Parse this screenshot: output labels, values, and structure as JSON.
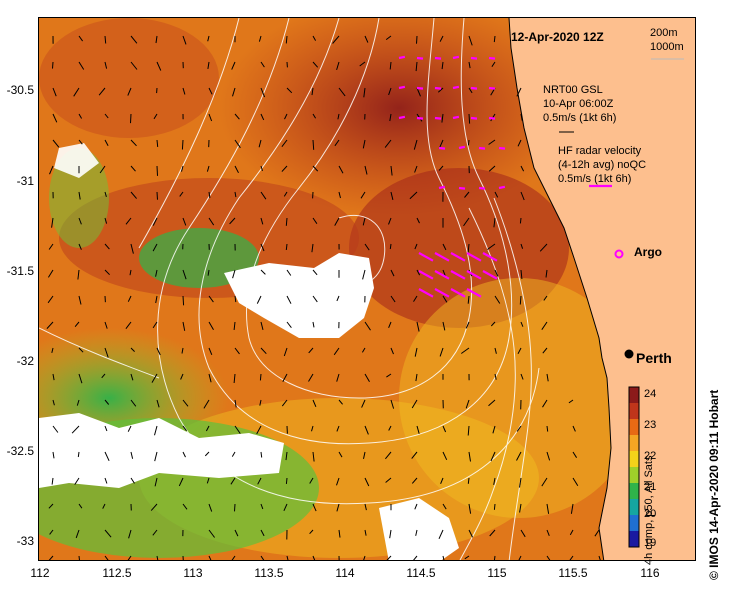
{
  "header": {
    "date_time": "12-Apr-2020 12Z",
    "contour_1": "200m",
    "contour_2": "1000m"
  },
  "legend": {
    "gsl_title": "NRT00 GSL",
    "gsl_date": "10-Apr 06:00Z",
    "gsl_scale": "0.5m/s (1kt 6h)",
    "radar_title": "HF radar velocity",
    "radar_sub": "(4-12h avg) noQC",
    "radar_scale": "0.5m/s (1kt 6h)",
    "argo_label": "Argo",
    "city_label": "Perth"
  },
  "colorbar": {
    "caption": "4h comp, p50, All Sats",
    "ticks": [
      "24",
      "23",
      "22",
      "21",
      "20",
      "19"
    ],
    "colors": [
      "#8b1a1a",
      "#c0351b",
      "#e86a14",
      "#f5a623",
      "#f3d21a",
      "#9fd02a",
      "#2fb34a",
      "#15a6a0",
      "#1f6fd1",
      "#1a1aa0"
    ]
  },
  "axes": {
    "y_ticks": [
      "-30.5",
      "-31",
      "-31.5",
      "-32",
      "-32.5",
      "-33"
    ],
    "x_ticks": [
      "112",
      "112.5",
      "113",
      "113.5",
      "114",
      "114.5",
      "115",
      "115.5",
      "116"
    ]
  },
  "credit": "© IMOS 14-Apr-2020 09:11 Hobart",
  "colors": {
    "land": "#fdbf8e",
    "radar_arrow": "#ff00ff",
    "contour": "#ffffff"
  }
}
